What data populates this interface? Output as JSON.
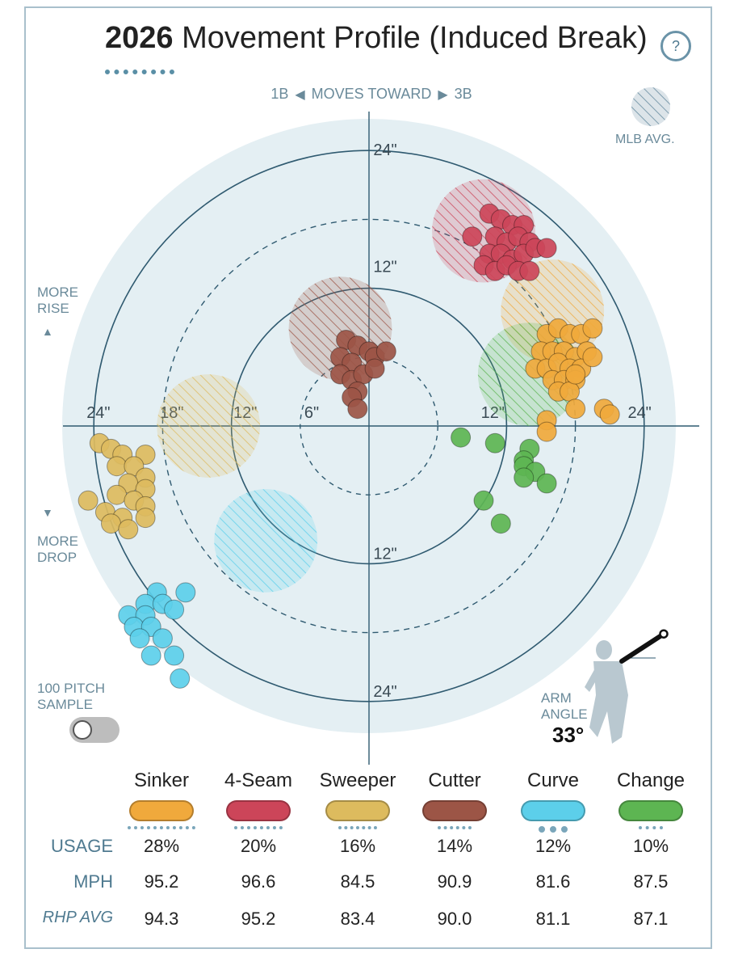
{
  "header": {
    "title_year": "2026",
    "title_rest": "Movement Profile (Induced Break)",
    "help_icon": "question-mark-icon"
  },
  "direction": {
    "left": "1B",
    "middle": "MOVES TOWARD",
    "right": "3B"
  },
  "side_labels": {
    "rise": [
      "MORE",
      "RISE"
    ],
    "drop": [
      "MORE",
      "DROP"
    ]
  },
  "legend_mlb": "MLB AVG.",
  "sample": {
    "line1": "100 PITCH",
    "line2": "SAMPLE",
    "toggle_on": false
  },
  "arm_angle": {
    "line1": "ARM",
    "line2": "ANGLE",
    "value": "33°",
    "degrees": 33
  },
  "colors": {
    "Sinker": "#f0a93c",
    "4-Seam": "#cc4559",
    "Sweeper": "#ddbb5e",
    "Cutter": "#9c5546",
    "Curve": "#5ccfea",
    "Change": "#5db552",
    "plot_bg": "#e4eff3",
    "ring": "#2f5a70"
  },
  "chart_data": {
    "type": "scatter",
    "coordinate_system": "polar-style movement plot, origin center, horizontal break (inches) and induced vertical break (inches)",
    "ring_labels": {
      "top": [
        "24\"",
        "12\""
      ],
      "bottom": [
        "12\"",
        "24\""
      ],
      "left": [
        "24\"",
        "18\"",
        "12\"",
        "6\""
      ],
      "right": [
        "12\"",
        "24\""
      ]
    },
    "xlim": [
      -28,
      28
    ],
    "ylim": [
      -28,
      28
    ],
    "mlb_avg": [
      {
        "pitch": "4-Seam",
        "x": 10,
        "y": 17,
        "r": 4.5
      },
      {
        "pitch": "Sinker",
        "x": 16,
        "y": 10,
        "r": 4.5
      },
      {
        "pitch": "Change",
        "x": 14,
        "y": 4.5,
        "r": 4.5
      },
      {
        "pitch": "Cutter",
        "x": -2.5,
        "y": 8.5,
        "r": 4.5
      },
      {
        "pitch": "Sweeper",
        "x": -14,
        "y": 0,
        "r": 4.5
      },
      {
        "pitch": "Curve",
        "x": -9,
        "y": -10,
        "r": 4.5
      }
    ],
    "series": [
      {
        "name": "Sinker",
        "points": [
          [
            15.5,
            8
          ],
          [
            16.5,
            8.5
          ],
          [
            17.5,
            8
          ],
          [
            18.5,
            8
          ],
          [
            19.5,
            8.5
          ],
          [
            15,
            6.5
          ],
          [
            16,
            6.5
          ],
          [
            17,
            6.5
          ],
          [
            18,
            6
          ],
          [
            19,
            6.5
          ],
          [
            14.5,
            5
          ],
          [
            15.5,
            5
          ],
          [
            16.5,
            5.5
          ],
          [
            17.5,
            5
          ],
          [
            18.5,
            5
          ],
          [
            19.5,
            6
          ],
          [
            16,
            4
          ],
          [
            17,
            4
          ],
          [
            18,
            4
          ],
          [
            16.5,
            3
          ],
          [
            17.5,
            3
          ],
          [
            18,
            4.5
          ],
          [
            20.5,
            1.5
          ],
          [
            21,
            1
          ],
          [
            18,
            1.5
          ],
          [
            15.5,
            0.5
          ],
          [
            15.5,
            -0.5
          ]
        ]
      },
      {
        "name": "4-Seam",
        "points": [
          [
            10.5,
            18.5
          ],
          [
            11.5,
            18
          ],
          [
            12.5,
            17.5
          ],
          [
            13.5,
            17.5
          ],
          [
            9,
            16.5
          ],
          [
            11,
            16.5
          ],
          [
            12,
            16
          ],
          [
            13,
            16.5
          ],
          [
            14,
            16
          ],
          [
            10.5,
            15
          ],
          [
            11.5,
            15
          ],
          [
            12.5,
            14.5
          ],
          [
            13.5,
            15
          ],
          [
            14.5,
            15.5
          ],
          [
            15.5,
            15.5
          ],
          [
            10,
            14
          ],
          [
            11,
            13.5
          ],
          [
            12,
            14
          ],
          [
            13,
            13.5
          ],
          [
            14,
            13.5
          ]
        ]
      },
      {
        "name": "Cutter",
        "points": [
          [
            -2,
            7.5
          ],
          [
            -1,
            7
          ],
          [
            0,
            6.5
          ],
          [
            -2.5,
            6
          ],
          [
            -1.5,
            5.5
          ],
          [
            0.5,
            6
          ],
          [
            1.5,
            6.5
          ],
          [
            -2.5,
            4.5
          ],
          [
            -1.5,
            4
          ],
          [
            -0.5,
            4.5
          ],
          [
            0.5,
            5
          ],
          [
            -1,
            3
          ],
          [
            -1.5,
            2.5
          ],
          [
            -1,
            1.5
          ]
        ]
      },
      {
        "name": "Sweeper",
        "points": [
          [
            -23.5,
            -1.5
          ],
          [
            -22.5,
            -2
          ],
          [
            -21.5,
            -2.5
          ],
          [
            -19.5,
            -2.5
          ],
          [
            -22,
            -3.5
          ],
          [
            -20.5,
            -3.5
          ],
          [
            -19.5,
            -4.5
          ],
          [
            -21,
            -5
          ],
          [
            -19.5,
            -5.5
          ],
          [
            -22,
            -6
          ],
          [
            -20.5,
            -6.5
          ],
          [
            -19.5,
            -7
          ],
          [
            -24.5,
            -6.5
          ],
          [
            -23,
            -7.5
          ],
          [
            -21.5,
            -8
          ],
          [
            -19.5,
            -8
          ],
          [
            -22.5,
            -8.5
          ],
          [
            -21,
            -9
          ]
        ]
      },
      {
        "name": "Curve",
        "points": [
          [
            -18.5,
            -14.5
          ],
          [
            -16,
            -14.5
          ],
          [
            -19.5,
            -15.5
          ],
          [
            -18,
            -15.5
          ],
          [
            -17,
            -16
          ],
          [
            -21,
            -16.5
          ],
          [
            -19.5,
            -16.5
          ],
          [
            -20.5,
            -17.5
          ],
          [
            -19,
            -17.5
          ],
          [
            -20,
            -18.5
          ],
          [
            -18,
            -18.5
          ],
          [
            -19,
            -20
          ],
          [
            -17,
            -20
          ],
          [
            -16.5,
            -22
          ]
        ]
      },
      {
        "name": "Change",
        "points": [
          [
            8,
            -1
          ],
          [
            11,
            -1.5
          ],
          [
            14,
            -2
          ],
          [
            13.5,
            -3
          ],
          [
            13.5,
            -3.5
          ],
          [
            14.5,
            -4
          ],
          [
            13.5,
            -4.5
          ],
          [
            15.5,
            -5
          ],
          [
            10,
            -6.5
          ],
          [
            11.5,
            -8.5
          ]
        ]
      }
    ]
  },
  "table": {
    "pitches": [
      {
        "name": "Sinker",
        "color": "#f0a93c",
        "usage": "28%",
        "mph": "95.2",
        "rhp_avg": "94.3",
        "usage_pct": 28
      },
      {
        "name": "4-Seam",
        "color": "#cc4559",
        "usage": "20%",
        "mph": "96.6",
        "rhp_avg": "95.2",
        "usage_pct": 20
      },
      {
        "name": "Sweeper",
        "color": "#ddbb5e",
        "usage": "16%",
        "mph": "84.5",
        "rhp_avg": "83.4",
        "usage_pct": 16
      },
      {
        "name": "Cutter",
        "color": "#9c5546",
        "usage": "14%",
        "mph": "90.9",
        "rhp_avg": "90.0",
        "usage_pct": 14
      },
      {
        "name": "Curve",
        "color": "#5ccfea",
        "usage": "12%",
        "mph": "81.6",
        "rhp_avg": "81.1",
        "usage_pct": 12
      },
      {
        "name": "Change",
        "color": "#5db552",
        "usage": "10%",
        "mph": "87.5",
        "rhp_avg": "87.1",
        "usage_pct": 10
      }
    ],
    "row_labels": {
      "usage": "USAGE",
      "mph": "MPH",
      "rhp_avg": "RHP AVG"
    }
  }
}
